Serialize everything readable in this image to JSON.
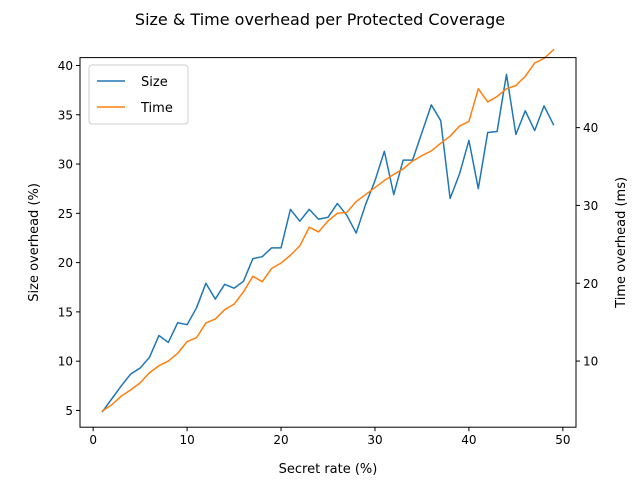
{
  "chart_data": {
    "type": "line",
    "title": "Size & Time overhead per Protected Coverage",
    "xlabel": "Secret rate (%)",
    "ylabel": "Size overhead (%)",
    "y2label": "Time overhead (ms)",
    "xlim": [
      -1.4,
      51.4
    ],
    "ylim": [
      3.3,
      40.8
    ],
    "y2lim": [
      1.5,
      49.0
    ],
    "xticks": [
      0,
      10,
      20,
      30,
      40,
      50
    ],
    "yticks": [
      5,
      10,
      15,
      20,
      25,
      30,
      35,
      40
    ],
    "y2ticks": [
      10,
      20,
      30,
      40
    ],
    "legend_position": "upper-left",
    "grid": false,
    "x": [
      1,
      2,
      3,
      4,
      5,
      6,
      7,
      8,
      9,
      10,
      11,
      12,
      13,
      14,
      15,
      16,
      17,
      18,
      19,
      20,
      21,
      22,
      23,
      24,
      25,
      26,
      27,
      28,
      29,
      30,
      31,
      32,
      33,
      34,
      35,
      36,
      37,
      38,
      39,
      40,
      41,
      42,
      43,
      44,
      45,
      46,
      47,
      48,
      49
    ],
    "series": [
      {
        "name": "Size",
        "axis": "left",
        "color": "#1f77b4",
        "values": [
          4.9,
          6.2,
          7.5,
          8.7,
          9.3,
          10.4,
          12.6,
          11.9,
          13.9,
          13.7,
          15.4,
          17.9,
          16.3,
          17.8,
          17.4,
          18.1,
          20.4,
          20.6,
          21.5,
          21.5,
          25.4,
          24.2,
          25.4,
          24.4,
          24.6,
          26.0,
          24.8,
          23.0,
          25.9,
          28.3,
          31.3,
          26.9,
          30.4,
          30.4,
          33.2,
          36.0,
          34.4,
          26.5,
          29.0,
          32.4,
          27.5,
          33.2,
          33.3,
          39.1,
          33.0,
          35.4,
          33.4,
          35.9,
          34.0
        ]
      },
      {
        "name": "Time",
        "axis": "right",
        "color": "#ff7f0e",
        "values": [
          3.6,
          4.4,
          5.5,
          6.3,
          7.2,
          8.5,
          9.4,
          10.0,
          11.0,
          12.5,
          13.0,
          14.9,
          15.4,
          16.6,
          17.3,
          18.9,
          20.9,
          20.2,
          21.9,
          22.6,
          23.6,
          24.8,
          27.2,
          26.6,
          28.0,
          29.0,
          29.1,
          30.5,
          31.4,
          32.3,
          33.2,
          34.0,
          34.7,
          35.7,
          36.4,
          37.0,
          38.0,
          38.9,
          40.2,
          40.8,
          45.0,
          43.3,
          44.0,
          45.0,
          45.4,
          46.6,
          48.3,
          48.9,
          50.0
        ]
      }
    ]
  }
}
